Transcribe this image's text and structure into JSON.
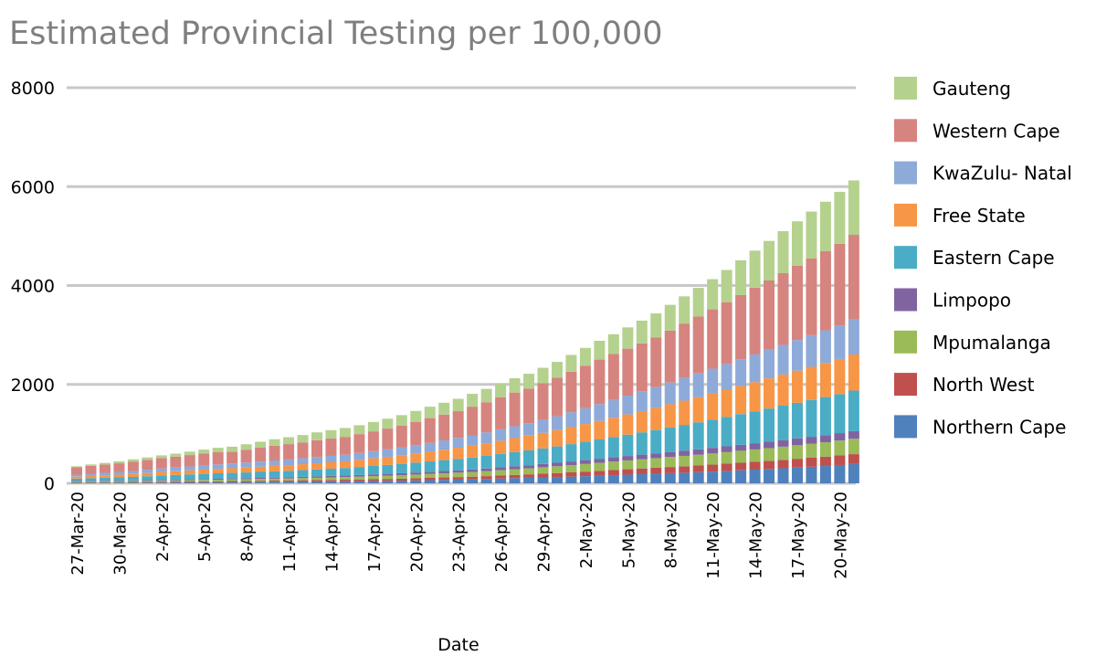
{
  "chart_data": {
    "type": "bar",
    "stacked": true,
    "title": "Estimated Provincial Testing per 100,000",
    "xlabel": "Date",
    "ylabel": "",
    "ylim": [
      0,
      8000
    ],
    "yticks": [
      0,
      2000,
      4000,
      6000,
      8000
    ],
    "grid": true,
    "legend_position": "right",
    "xtick_labels": [
      "27-Mar-20",
      "30-Mar-20",
      "2-Apr-20",
      "5-Apr-20",
      "8-Apr-20",
      "11-Apr-20",
      "14-Apr-20",
      "17-Apr-20",
      "20-Apr-20",
      "23-Apr-20",
      "26-Apr-20",
      "29-Apr-20",
      "2-May-20",
      "5-May-20",
      "8-May-20",
      "11-May-20",
      "14-May-20",
      "17-May-20",
      "20-May-20"
    ],
    "categories": [
      "27-Mar-20",
      "28-Mar-20",
      "29-Mar-20",
      "30-Mar-20",
      "31-Mar-20",
      "1-Apr-20",
      "2-Apr-20",
      "3-Apr-20",
      "4-Apr-20",
      "5-Apr-20",
      "6-Apr-20",
      "7-Apr-20",
      "8-Apr-20",
      "9-Apr-20",
      "10-Apr-20",
      "11-Apr-20",
      "12-Apr-20",
      "13-Apr-20",
      "14-Apr-20",
      "15-Apr-20",
      "16-Apr-20",
      "17-Apr-20",
      "18-Apr-20",
      "19-Apr-20",
      "20-Apr-20",
      "21-Apr-20",
      "22-Apr-20",
      "23-Apr-20",
      "24-Apr-20",
      "25-Apr-20",
      "26-Apr-20",
      "27-Apr-20",
      "28-Apr-20",
      "29-Apr-20",
      "30-Apr-20",
      "1-May-20",
      "2-May-20",
      "3-May-20",
      "4-May-20",
      "5-May-20",
      "6-May-20",
      "7-May-20",
      "8-May-20",
      "9-May-20",
      "10-May-20",
      "11-May-20",
      "12-May-20",
      "13-May-20",
      "14-May-20",
      "15-May-20",
      "16-May-20",
      "17-May-20",
      "18-May-20",
      "19-May-20",
      "20-May-20",
      "21-May-20"
    ],
    "series": [
      {
        "name": "Northern Cape",
        "color": "#4f81bd",
        "values": [
          10,
          11,
          12,
          13,
          14,
          15,
          17,
          18,
          20,
          22,
          24,
          26,
          28,
          30,
          32,
          34,
          36,
          38,
          40,
          42,
          45,
          48,
          51,
          55,
          60,
          65,
          70,
          75,
          80,
          88,
          96,
          105,
          112,
          120,
          128,
          136,
          145,
          155,
          165,
          175,
          185,
          195,
          205,
          215,
          225,
          238,
          251,
          264,
          277,
          290,
          305,
          320,
          335,
          350,
          370,
          390
        ]
      },
      {
        "name": "North West",
        "color": "#c0504d",
        "values": [
          10,
          11,
          12,
          12,
          13,
          14,
          15,
          16,
          17,
          18,
          19,
          20,
          21,
          22,
          23,
          24,
          26,
          28,
          30,
          32,
          34,
          36,
          38,
          40,
          43,
          46,
          49,
          52,
          55,
          58,
          62,
          66,
          70,
          75,
          80,
          86,
          92,
          98,
          104,
          110,
          115,
          120,
          125,
          130,
          135,
          140,
          146,
          152,
          158,
          164,
          170,
          176,
          182,
          188,
          195,
          200
        ]
      },
      {
        "name": "Mpumalanga",
        "color": "#9bbb59",
        "values": [
          15,
          16,
          17,
          18,
          20,
          21,
          23,
          25,
          27,
          29,
          31,
          33,
          35,
          37,
          39,
          41,
          44,
          47,
          50,
          53,
          57,
          61,
          65,
          69,
          74,
          79,
          84,
          89,
          95,
          101,
          108,
          115,
          122,
          130,
          138,
          146,
          154,
          162,
          170,
          178,
          186,
          194,
          202,
          210,
          218,
          226,
          234,
          242,
          250,
          258,
          266,
          274,
          282,
          290,
          300,
          310
        ]
      },
      {
        "name": "Limpopo",
        "color": "#8064a2",
        "values": [
          10,
          11,
          12,
          12,
          13,
          14,
          15,
          16,
          17,
          18,
          19,
          20,
          21,
          22,
          23,
          24,
          26,
          28,
          30,
          32,
          34,
          36,
          38,
          40,
          42,
          44,
          46,
          48,
          50,
          53,
          56,
          59,
          62,
          66,
          70,
          74,
          78,
          82,
          86,
          90,
          94,
          98,
          102,
          106,
          110,
          114,
          118,
          122,
          126,
          130,
          134,
          138,
          142,
          146,
          150,
          155
        ]
      },
      {
        "name": "Eastern Cape",
        "color": "#4bacc6",
        "values": [
          50,
          55,
          60,
          65,
          70,
          80,
          90,
          95,
          100,
          105,
          110,
          112,
          115,
          120,
          125,
          130,
          135,
          140,
          145,
          150,
          160,
          170,
          180,
          190,
          200,
          210,
          220,
          230,
          240,
          255,
          270,
          285,
          300,
          315,
          330,
          350,
          370,
          390,
          410,
          430,
          450,
          470,
          495,
          520,
          545,
          570,
          595,
          620,
          645,
          670,
          695,
          720,
          745,
          770,
          790,
          820
        ]
      },
      {
        "name": "Free State",
        "color": "#f79646",
        "values": [
          40,
          45,
          50,
          55,
          60,
          65,
          70,
          75,
          80,
          85,
          90,
          95,
          100,
          105,
          110,
          115,
          120,
          125,
          130,
          135,
          145,
          155,
          165,
          175,
          185,
          195,
          210,
          225,
          240,
          255,
          270,
          285,
          300,
          315,
          330,
          345,
          360,
          375,
          390,
          410,
          430,
          450,
          470,
          490,
          510,
          530,
          550,
          570,
          590,
          610,
          630,
          650,
          670,
          690,
          710,
          730
        ]
      },
      {
        "name": "KwaZulu- Natal",
        "color": "#8eaad8",
        "values": [
          40,
          45,
          50,
          55,
          60,
          65,
          70,
          75,
          80,
          85,
          90,
          95,
          100,
          105,
          110,
          115,
          120,
          125,
          130,
          135,
          140,
          145,
          150,
          160,
          170,
          180,
          190,
          200,
          210,
          220,
          230,
          240,
          250,
          265,
          280,
          300,
          320,
          340,
          360,
          380,
          400,
          420,
          440,
          460,
          480,
          500,
          520,
          540,
          560,
          580,
          600,
          620,
          640,
          660,
          680,
          720
        ]
      },
      {
        "name": "Western Cape",
        "color": "#d6847f",
        "values": [
          150,
          160,
          165,
          175,
          190,
          200,
          210,
          220,
          230,
          240,
          245,
          240,
          260,
          280,
          300,
          310,
          320,
          340,
          350,
          360,
          380,
          400,
          420,
          440,
          470,
          500,
          520,
          540,
          580,
          610,
          650,
          680,
          700,
          740,
          780,
          820,
          860,
          900,
          930,
          950,
          970,
          1000,
          1050,
          1100,
          1150,
          1200,
          1250,
          1300,
          1350,
          1400,
          1450,
          1500,
          1550,
          1600,
          1650,
          1700
        ]
      },
      {
        "name": "Gauteng",
        "color": "#b5d18e",
        "values": [
          20,
          28,
          35,
          40,
          45,
          50,
          55,
          60,
          70,
          80,
          90,
          100,
          110,
          120,
          130,
          140,
          150,
          160,
          170,
          180,
          180,
          190,
          200,
          210,
          220,
          230,
          240,
          250,
          260,
          270,
          280,
          290,
          300,
          310,
          320,
          340,
          360,
          380,
          400,
          430,
          460,
          490,
          520,
          550,
          580,
          610,
          650,
          700,
          750,
          800,
          850,
          900,
          950,
          1000,
          1050,
          1100
        ]
      }
    ]
  }
}
